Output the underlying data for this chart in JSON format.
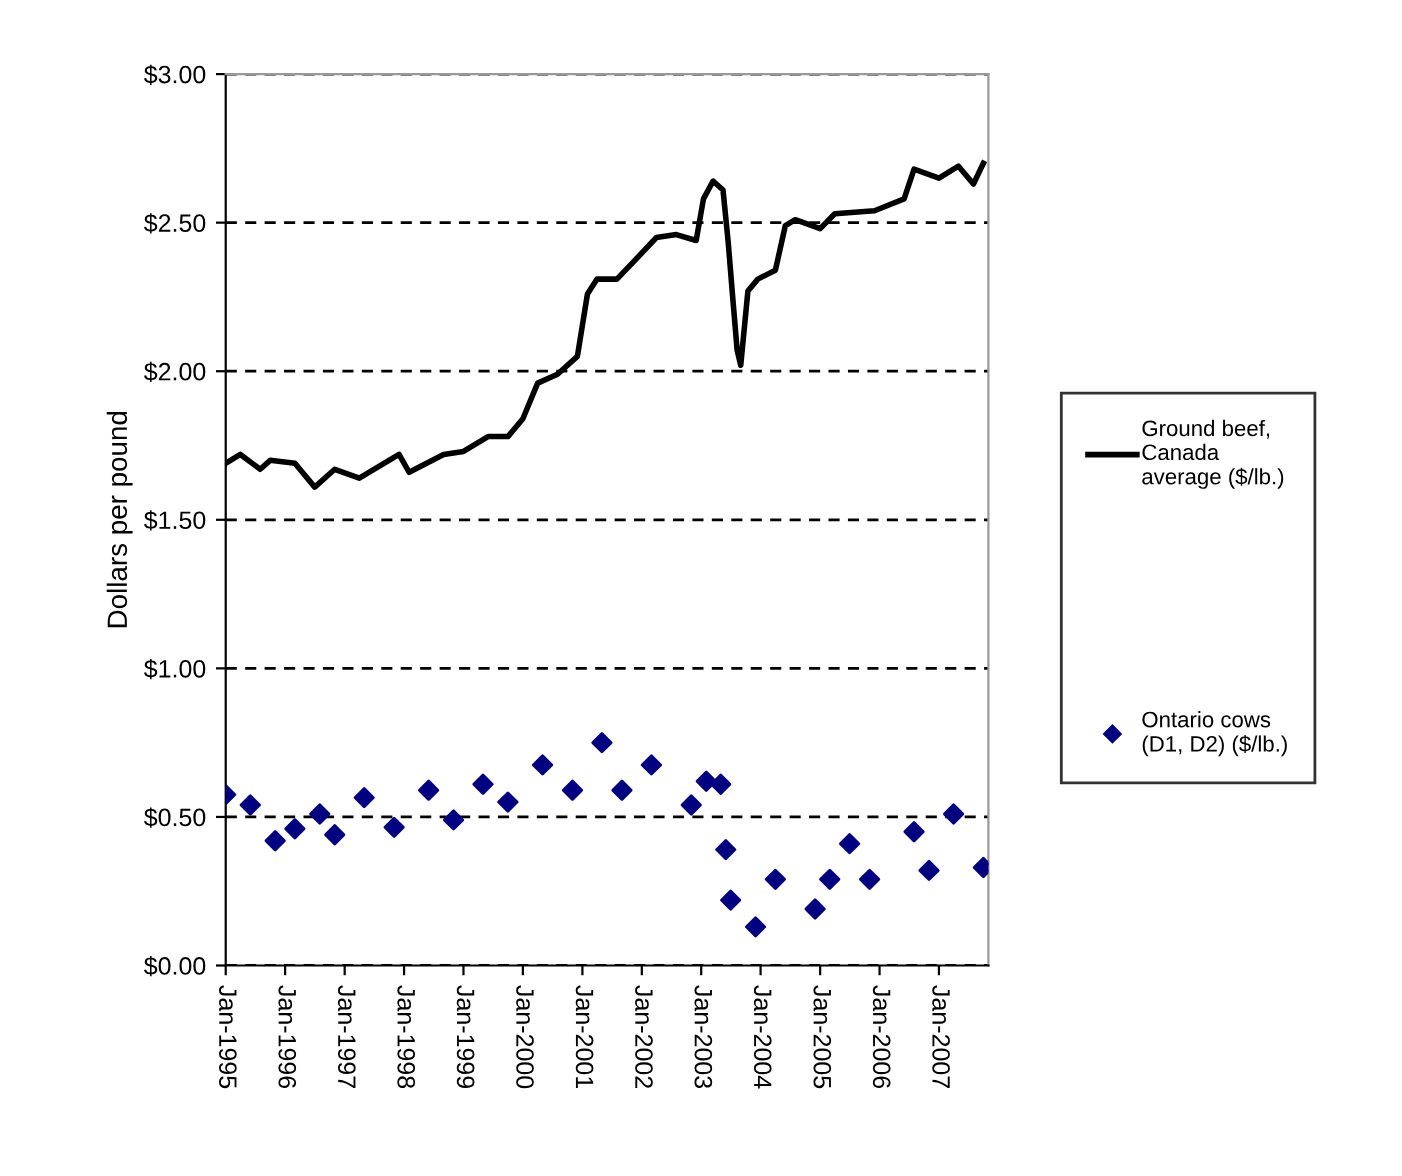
{
  "chart_data": {
    "type": "line",
    "ylabel": "Dollars per pound",
    "xlim": [
      "1995-01-01",
      "2007-11-01"
    ],
    "ylim": [
      0,
      3
    ],
    "yticks": [
      {
        "value": 0,
        "label": "$0.00"
      },
      {
        "value": 0.5,
        "label": "$0.50"
      },
      {
        "value": 1,
        "label": "$1.00"
      },
      {
        "value": 1.5,
        "label": "$1.50"
      },
      {
        "value": 2,
        "label": "$2.00"
      },
      {
        "value": 2.5,
        "label": "$2.50"
      },
      {
        "value": 3,
        "label": "$3.00"
      }
    ],
    "xticks": [
      {
        "value": "1995-01-01",
        "label": "Jan-1995"
      },
      {
        "value": "1996-01-01",
        "label": "Jan-1996"
      },
      {
        "value": "1997-01-01",
        "label": "Jan-1997"
      },
      {
        "value": "1998-01-01",
        "label": "Jan-1998"
      },
      {
        "value": "1999-01-01",
        "label": "Jan-1999"
      },
      {
        "value": "2000-01-01",
        "label": "Jan-2000"
      },
      {
        "value": "2001-01-01",
        "label": "Jan-2001"
      },
      {
        "value": "2002-01-01",
        "label": "Jan-2002"
      },
      {
        "value": "2003-01-01",
        "label": "Jan-2003"
      },
      {
        "value": "2004-01-01",
        "label": "Jan-2004"
      },
      {
        "value": "2005-01-01",
        "label": "Jan-2005"
      },
      {
        "value": "2006-01-01",
        "label": "Jan-2006"
      },
      {
        "value": "2007-01-01",
        "label": "Jan-2007"
      }
    ],
    "grid": "y",
    "legend": "right",
    "series": [
      {
        "name": "Ground beef,\nCanada\naverage ($/lb.)",
        "color": "#000000",
        "line_style": "solid",
        "marker": "none",
        "x": [
          "1995-01-01",
          "1995-04-01",
          "1995-08-01",
          "1995-10-01",
          "1996-03-01",
          "1996-07-01",
          "1996-11-01",
          "1997-04-01",
          "1997-12-01",
          "1998-02-01",
          "1998-09-01",
          "1999-01-01",
          "1999-06-01",
          "1999-10-01",
          "2000-01-01",
          "2000-04-01",
          "2000-08-01",
          "2000-12-01",
          "2001-02-01",
          "2001-04-01",
          "2001-08-01",
          "2001-12-01",
          "2002-04-01",
          "2002-08-01",
          "2002-12-01",
          "2003-01-15",
          "2003-03-15",
          "2003-05-15",
          "2003-06-15",
          "2003-07-15",
          "2003-08-10",
          "2003-09-01",
          "2003-10-15",
          "2003-12-15",
          "2004-04-01",
          "2004-06-01",
          "2004-08-01",
          "2005-01-01",
          "2005-04-01",
          "2005-12-01",
          "2006-06-01",
          "2006-08-01",
          "2007-01-01",
          "2007-05-01",
          "2007-08-01",
          "2007-10-01"
        ],
        "values": [
          1.69,
          1.72,
          1.67,
          1.7,
          1.69,
          1.61,
          1.67,
          1.64,
          1.72,
          1.66,
          1.72,
          1.73,
          1.78,
          1.78,
          1.84,
          1.96,
          1.99,
          2.05,
          2.26,
          2.31,
          2.31,
          2.38,
          2.45,
          2.46,
          2.44,
          2.58,
          2.64,
          2.61,
          2.44,
          2.24,
          2.07,
          2.02,
          2.27,
          2.31,
          2.34,
          2.49,
          2.51,
          2.48,
          2.53,
          2.54,
          2.58,
          2.68,
          2.65,
          2.69,
          2.63,
          2.7
        ]
      },
      {
        "name": "Ontario cows\n(D1, D2) ($/lb.)",
        "type": "scatter",
        "color": "#000080",
        "marker": "diamond",
        "x": [
          "1995-01-01",
          "1995-06-01",
          "1995-11-01",
          "1996-03-01",
          "1996-08-01",
          "1996-11-01",
          "1997-05-01",
          "1997-11-01",
          "1998-06-01",
          "1998-11-01",
          "1999-05-01",
          "1999-10-01",
          "2000-05-01",
          "2000-11-01",
          "2001-05-01",
          "2001-09-01",
          "2002-03-01",
          "2002-11-01",
          "2003-02-01",
          "2003-05-01",
          "2003-06-01",
          "2003-07-01",
          "2003-12-01",
          "2004-04-01",
          "2004-12-01",
          "2005-03-01",
          "2005-07-01",
          "2005-11-01",
          "2006-08-01",
          "2006-11-01",
          "2007-04-01",
          "2007-10-01"
        ],
        "values": [
          0.575,
          0.54,
          0.42,
          0.46,
          0.51,
          0.44,
          0.565,
          0.465,
          0.59,
          0.49,
          0.61,
          0.55,
          0.675,
          0.59,
          0.75,
          0.59,
          0.675,
          0.54,
          0.62,
          0.61,
          0.39,
          0.22,
          0.13,
          0.29,
          0.19,
          0.29,
          0.41,
          0.29,
          0.45,
          0.32,
          0.51,
          0.33
        ]
      }
    ]
  }
}
